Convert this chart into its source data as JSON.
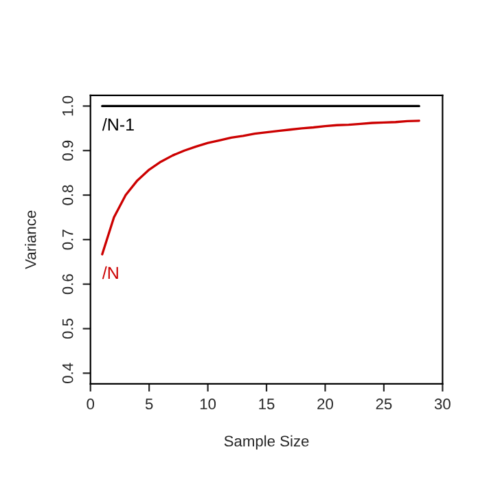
{
  "chart_data": {
    "type": "line",
    "xlabel": "Sample Size",
    "ylabel": "Variance",
    "x": [
      1,
      2,
      3,
      4,
      5,
      6,
      7,
      8,
      9,
      10,
      11,
      12,
      13,
      14,
      15,
      16,
      17,
      18,
      19,
      20,
      21,
      22,
      23,
      24,
      25,
      26,
      27,
      28
    ],
    "series": [
      {
        "name": "/N-1",
        "color": "#000000",
        "values": [
          1.0,
          1.0,
          1.0,
          1.0,
          1.0,
          1.0,
          1.0,
          1.0,
          1.0,
          1.0,
          1.0,
          1.0,
          1.0,
          1.0,
          1.0,
          1.0,
          1.0,
          1.0,
          1.0,
          1.0,
          1.0,
          1.0,
          1.0,
          1.0,
          1.0,
          1.0,
          1.0,
          1.0
        ]
      },
      {
        "name": "/N",
        "color": "#cc0000",
        "values": [
          0.667,
          0.75,
          0.8,
          0.833,
          0.857,
          0.875,
          0.889,
          0.9,
          0.909,
          0.917,
          0.923,
          0.929,
          0.933,
          0.938,
          0.941,
          0.944,
          0.947,
          0.95,
          0.952,
          0.955,
          0.957,
          0.958,
          0.96,
          0.962,
          0.963,
          0.964,
          0.966,
          0.967
        ]
      }
    ],
    "xlim": [
      0,
      30
    ],
    "ylim": [
      0.376,
      1.024
    ],
    "xticks": [
      0,
      5,
      10,
      15,
      20,
      25,
      30
    ],
    "yticks": [
      0.4,
      0.5,
      0.6,
      0.7,
      0.8,
      0.9,
      {
        "value": 1,
        "label": "1.0"
      }
    ],
    "grid": false,
    "legend": false,
    "marker": "none",
    "line_style": "solid"
  }
}
